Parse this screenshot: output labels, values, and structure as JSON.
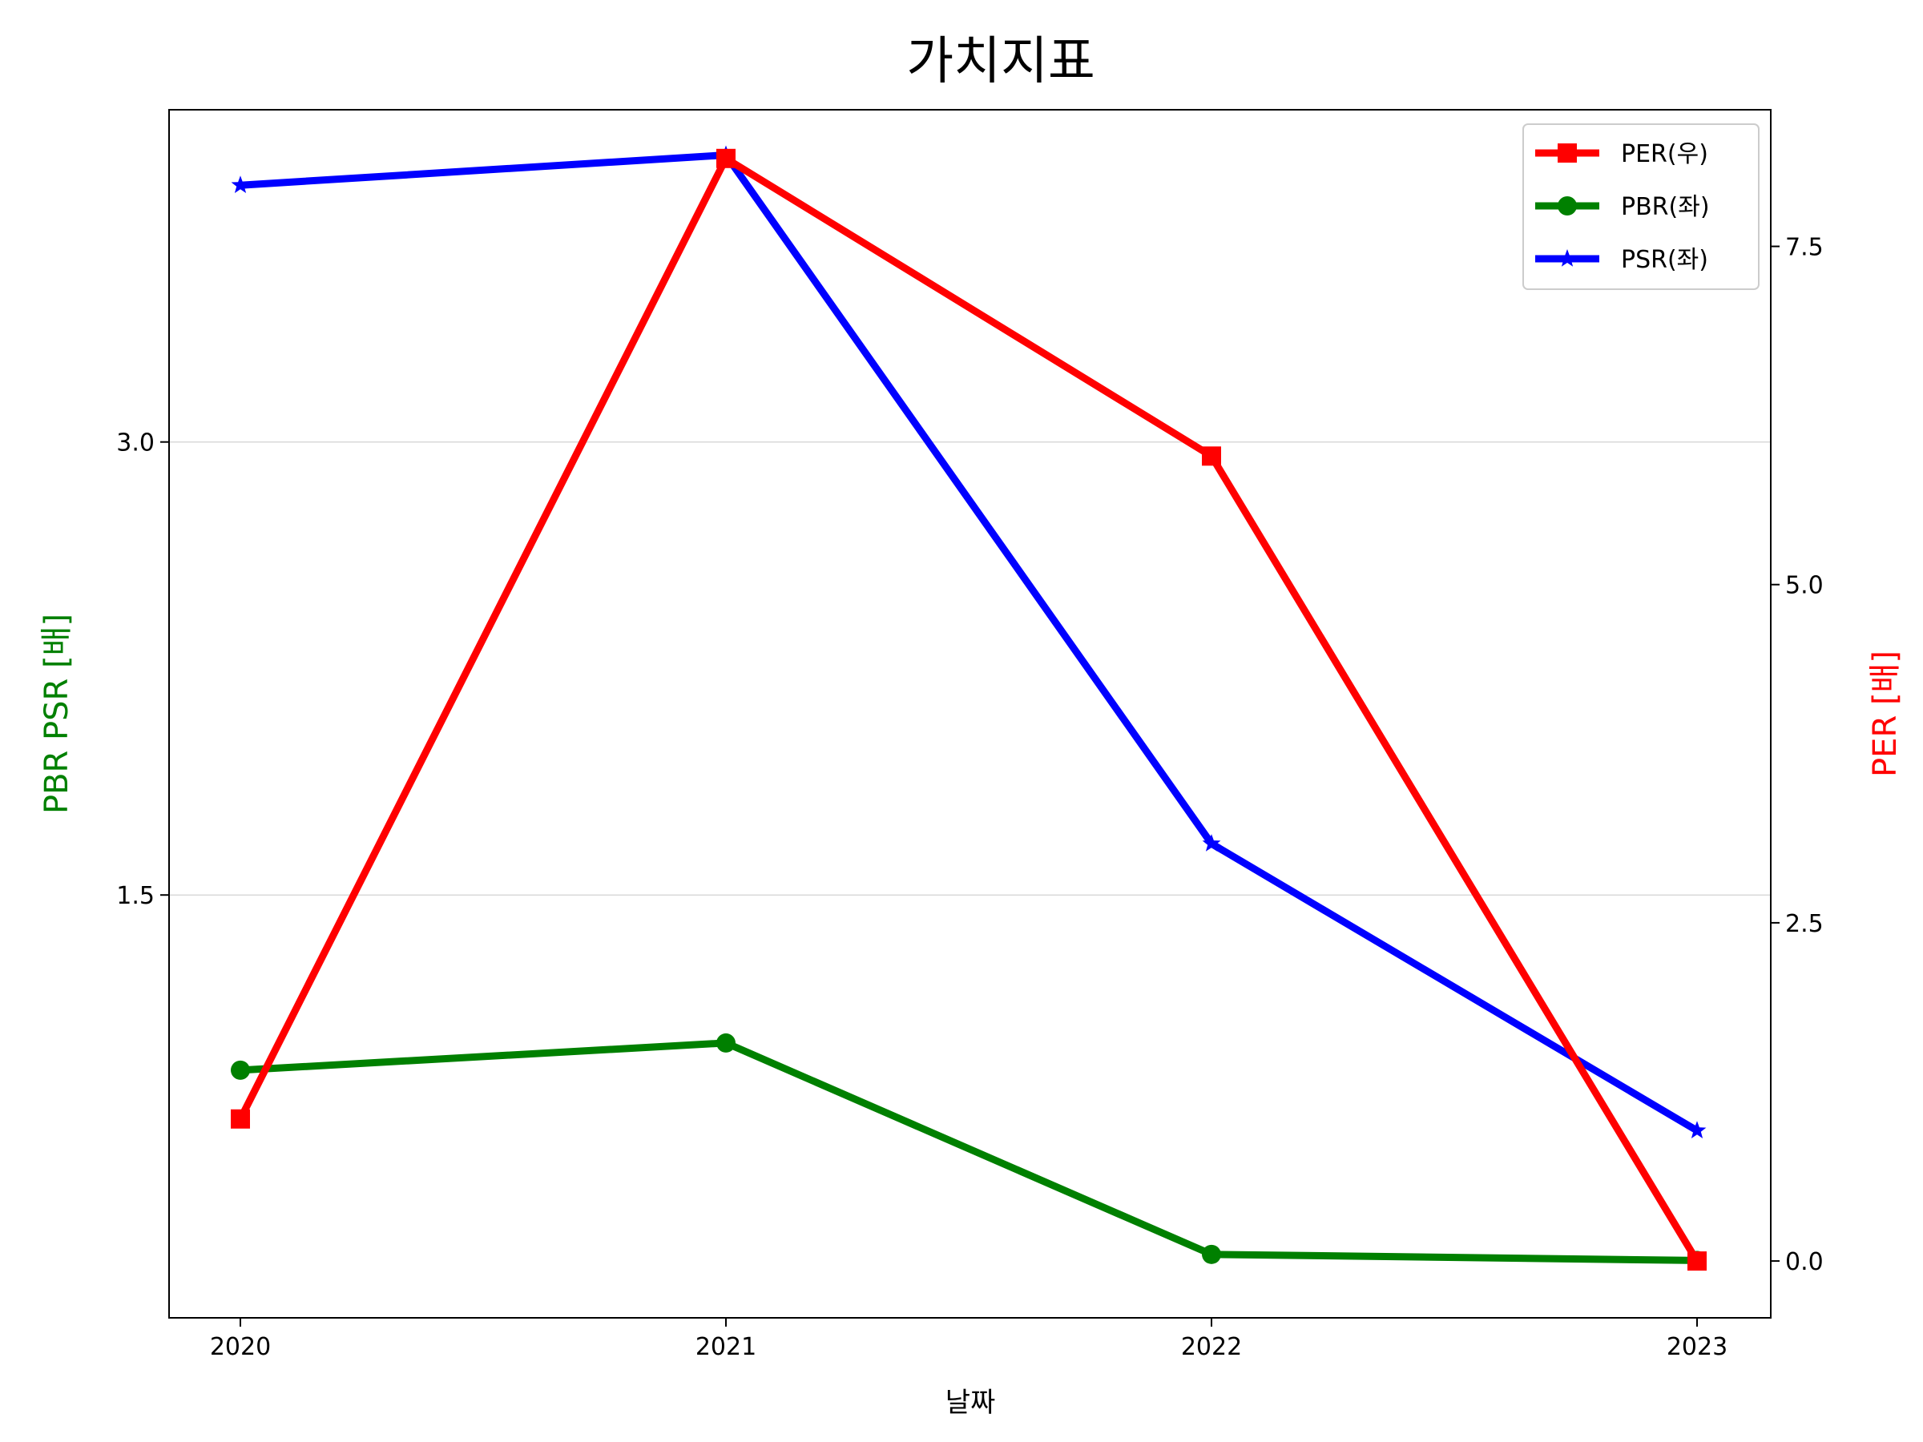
{
  "chart_data": {
    "type": "line",
    "title": "가치지표",
    "xlabel": "날짜",
    "ylabel_left": "PBR PSR [배]",
    "ylabel_right": "PER [배]",
    "ylabel_left_color": "#008000",
    "ylabel_right_color": "#ff0000",
    "categories": [
      "2020",
      "2021",
      "2022",
      "2023"
    ],
    "left_axis": {
      "ylim": [
        0.1,
        4.1
      ],
      "ticks": [
        1.5,
        3.0
      ],
      "tick_labels": [
        "1.5",
        "3.0"
      ],
      "grid": true
    },
    "right_axis": {
      "ylim": [
        -0.42,
        8.51
      ],
      "ticks": [
        0.0,
        2.5,
        5.0,
        7.5
      ],
      "tick_labels": [
        "0.0",
        "2.5",
        "5.0",
        "7.5"
      ]
    },
    "series": [
      {
        "name": "PER(우)",
        "axis": "right",
        "color": "#ff0000",
        "marker": "square",
        "values": [
          1.05,
          8.15,
          5.95,
          0.0
        ]
      },
      {
        "name": "PBR(좌)",
        "axis": "left",
        "color": "#008000",
        "marker": "circle",
        "values": [
          0.92,
          1.01,
          0.31,
          0.29
        ]
      },
      {
        "name": "PSR(좌)",
        "axis": "left",
        "color": "#0000ff",
        "marker": "star",
        "values": [
          3.85,
          3.95,
          1.67,
          0.72
        ]
      }
    ],
    "legend": {
      "placement": "top-right",
      "entries": [
        "PER(우)",
        "PBR(좌)",
        "PSR(좌)"
      ]
    }
  }
}
